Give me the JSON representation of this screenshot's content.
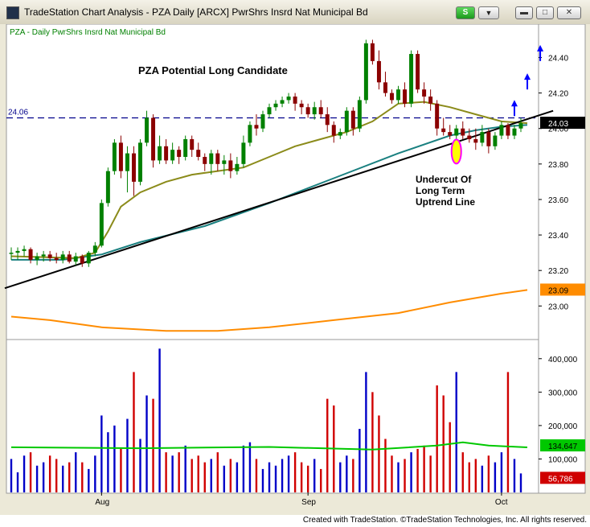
{
  "window": {
    "title": "TradeStation Chart Analysis - PZA Daily [ARCX] PwrShrs Insrd Nat Municipal Bd",
    "s_button": "S",
    "dropdown": "▼"
  },
  "colors": {
    "up": "#008000",
    "down": "#8b0000",
    "volume_up": "#0000c8",
    "volume_down": "#d00000",
    "ma_short": "#8b8b1a",
    "ma_mid": "#1a8080",
    "ma_long": "#ff8c00",
    "ma_volume": "#00c800",
    "trendline": "#000000",
    "resistance": "#00008b",
    "arrow": "#0000ff",
    "ellipse_fill": "#ffff00",
    "ellipse_stroke": "#ff00ff"
  },
  "footer": "Created with TradeStation. ©TradeStation Technologies, Inc. All rights reserved.",
  "chart_data": {
    "type": "candlestick",
    "legend": "PZA - Daily  PwrShrs Insrd Nat Municipal Bd",
    "annotation_title": "PZA  Potential Long Candidate",
    "annotation_note": [
      "Undercut Of",
      "Long Term",
      "Uptrend Line"
    ],
    "resistance_level": 24.06,
    "resistance_label": "24.06",
    "last_price_label": "24.03",
    "ma_long_label": "23.09",
    "volume_ma_label": "134,647",
    "last_volume_label": "56,786",
    "price_ylim": [
      22.82,
      24.52
    ],
    "price_ticks": [
      "24.40",
      "24.20",
      "24.00",
      "23.80",
      "23.60",
      "23.40",
      "23.20",
      "23.00"
    ],
    "volume_ylim": [
      0,
      450000
    ],
    "volume_ticks": [
      "400,000",
      "300,000",
      "200,000",
      "100,000"
    ],
    "x_labels": [
      {
        "label": "Aug",
        "index": 14
      },
      {
        "label": "Sep",
        "index": 46
      },
      {
        "label": "Oct",
        "index": 76
      }
    ],
    "candles": [
      {
        "o": 23.3,
        "h": 23.33,
        "l": 23.26,
        "c": 23.3,
        "v": 100000
      },
      {
        "o": 23.3,
        "h": 23.33,
        "l": 23.26,
        "c": 23.31,
        "v": 60000
      },
      {
        "o": 23.31,
        "h": 23.34,
        "l": 23.28,
        "c": 23.32,
        "v": 110000
      },
      {
        "o": 23.32,
        "h": 23.33,
        "l": 23.24,
        "c": 23.26,
        "v": 120000
      },
      {
        "o": 23.26,
        "h": 23.3,
        "l": 23.23,
        "c": 23.28,
        "v": 80000
      },
      {
        "o": 23.28,
        "h": 23.31,
        "l": 23.25,
        "c": 23.29,
        "v": 90000
      },
      {
        "o": 23.29,
        "h": 23.31,
        "l": 23.25,
        "c": 23.27,
        "v": 110000
      },
      {
        "o": 23.27,
        "h": 23.3,
        "l": 23.24,
        "c": 23.26,
        "v": 100000
      },
      {
        "o": 23.26,
        "h": 23.31,
        "l": 23.24,
        "c": 23.29,
        "v": 80000
      },
      {
        "o": 23.29,
        "h": 23.31,
        "l": 23.24,
        "c": 23.25,
        "v": 90000
      },
      {
        "o": 23.25,
        "h": 23.3,
        "l": 23.23,
        "c": 23.28,
        "v": 120000
      },
      {
        "o": 23.28,
        "h": 23.29,
        "l": 23.22,
        "c": 23.24,
        "v": 90000
      },
      {
        "o": 23.24,
        "h": 23.31,
        "l": 23.22,
        "c": 23.3,
        "v": 70000
      },
      {
        "o": 23.3,
        "h": 23.36,
        "l": 23.28,
        "c": 23.34,
        "v": 110000
      },
      {
        "o": 23.34,
        "h": 23.6,
        "l": 23.33,
        "c": 23.58,
        "v": 230000
      },
      {
        "o": 23.58,
        "h": 23.78,
        "l": 23.56,
        "c": 23.76,
        "v": 180000
      },
      {
        "o": 23.76,
        "h": 23.94,
        "l": 23.74,
        "c": 23.92,
        "v": 200000
      },
      {
        "o": 23.92,
        "h": 23.96,
        "l": 23.72,
        "c": 23.76,
        "v": 130000
      },
      {
        "o": 23.76,
        "h": 23.9,
        "l": 23.64,
        "c": 23.86,
        "v": 220000
      },
      {
        "o": 23.86,
        "h": 23.9,
        "l": 23.62,
        "c": 23.7,
        "v": 360000
      },
      {
        "o": 23.7,
        "h": 23.94,
        "l": 23.68,
        "c": 23.92,
        "v": 160000
      },
      {
        "o": 23.92,
        "h": 24.1,
        "l": 23.9,
        "c": 24.06,
        "v": 290000
      },
      {
        "o": 24.06,
        "h": 24.08,
        "l": 23.78,
        "c": 23.82,
        "v": 280000
      },
      {
        "o": 23.82,
        "h": 23.96,
        "l": 23.8,
        "c": 23.9,
        "v": 430000
      },
      {
        "o": 23.9,
        "h": 23.94,
        "l": 23.8,
        "c": 23.82,
        "v": 120000
      },
      {
        "o": 23.82,
        "h": 23.92,
        "l": 23.8,
        "c": 23.88,
        "v": 110000
      },
      {
        "o": 23.88,
        "h": 23.9,
        "l": 23.8,
        "c": 23.84,
        "v": 120000
      },
      {
        "o": 23.84,
        "h": 23.96,
        "l": 23.82,
        "c": 23.94,
        "v": 140000
      },
      {
        "o": 23.94,
        "h": 23.96,
        "l": 23.84,
        "c": 23.88,
        "v": 100000
      },
      {
        "o": 23.88,
        "h": 23.92,
        "l": 23.82,
        "c": 23.84,
        "v": 110000
      },
      {
        "o": 23.84,
        "h": 23.86,
        "l": 23.76,
        "c": 23.8,
        "v": 90000
      },
      {
        "o": 23.8,
        "h": 23.88,
        "l": 23.74,
        "c": 23.86,
        "v": 100000
      },
      {
        "o": 23.86,
        "h": 23.88,
        "l": 23.76,
        "c": 23.8,
        "v": 120000
      },
      {
        "o": 23.8,
        "h": 23.85,
        "l": 23.74,
        "c": 23.82,
        "v": 80000
      },
      {
        "o": 23.82,
        "h": 23.86,
        "l": 23.72,
        "c": 23.76,
        "v": 100000
      },
      {
        "o": 23.76,
        "h": 23.84,
        "l": 23.74,
        "c": 23.8,
        "v": 90000
      },
      {
        "o": 23.8,
        "h": 23.96,
        "l": 23.78,
        "c": 23.92,
        "v": 140000
      },
      {
        "o": 23.92,
        "h": 24.04,
        "l": 23.9,
        "c": 24.02,
        "v": 150000
      },
      {
        "o": 24.02,
        "h": 24.08,
        "l": 23.96,
        "c": 24.0,
        "v": 100000
      },
      {
        "o": 24.0,
        "h": 24.1,
        "l": 23.98,
        "c": 24.08,
        "v": 70000
      },
      {
        "o": 24.08,
        "h": 24.14,
        "l": 24.06,
        "c": 24.12,
        "v": 90000
      },
      {
        "o": 24.12,
        "h": 24.16,
        "l": 24.1,
        "c": 24.14,
        "v": 80000
      },
      {
        "o": 24.14,
        "h": 24.18,
        "l": 24.12,
        "c": 24.16,
        "v": 100000
      },
      {
        "o": 24.16,
        "h": 24.2,
        "l": 24.14,
        "c": 24.18,
        "v": 110000
      },
      {
        "o": 24.18,
        "h": 24.2,
        "l": 24.1,
        "c": 24.14,
        "v": 120000
      },
      {
        "o": 24.14,
        "h": 24.16,
        "l": 24.08,
        "c": 24.12,
        "v": 90000
      },
      {
        "o": 24.12,
        "h": 24.14,
        "l": 24.06,
        "c": 24.08,
        "v": 80000
      },
      {
        "o": 24.08,
        "h": 24.15,
        "l": 24.05,
        "c": 24.12,
        "v": 100000
      },
      {
        "o": 24.12,
        "h": 24.16,
        "l": 24.06,
        "c": 24.08,
        "v": 70000
      },
      {
        "o": 24.08,
        "h": 24.12,
        "l": 23.98,
        "c": 24.02,
        "v": 280000
      },
      {
        "o": 24.02,
        "h": 24.04,
        "l": 23.92,
        "c": 23.96,
        "v": 260000
      },
      {
        "o": 23.96,
        "h": 24.0,
        "l": 23.94,
        "c": 23.98,
        "v": 90000
      },
      {
        "o": 23.98,
        "h": 24.12,
        "l": 23.96,
        "c": 24.1,
        "v": 110000
      },
      {
        "o": 24.1,
        "h": 24.12,
        "l": 23.96,
        "c": 24.0,
        "v": 100000
      },
      {
        "o": 24.0,
        "h": 24.18,
        "l": 23.98,
        "c": 24.16,
        "v": 190000
      },
      {
        "o": 24.16,
        "h": 24.5,
        "l": 24.14,
        "c": 24.48,
        "v": 360000
      },
      {
        "o": 24.48,
        "h": 24.5,
        "l": 24.36,
        "c": 24.38,
        "v": 300000
      },
      {
        "o": 24.38,
        "h": 24.44,
        "l": 24.22,
        "c": 24.26,
        "v": 230000
      },
      {
        "o": 24.26,
        "h": 24.32,
        "l": 24.18,
        "c": 24.2,
        "v": 160000
      },
      {
        "o": 24.2,
        "h": 24.22,
        "l": 24.14,
        "c": 24.16,
        "v": 110000
      },
      {
        "o": 24.16,
        "h": 24.24,
        "l": 24.14,
        "c": 24.22,
        "v": 90000
      },
      {
        "o": 24.22,
        "h": 24.26,
        "l": 24.12,
        "c": 24.14,
        "v": 100000
      },
      {
        "o": 24.14,
        "h": 24.44,
        "l": 24.12,
        "c": 24.42,
        "v": 120000
      },
      {
        "o": 24.42,
        "h": 24.44,
        "l": 24.2,
        "c": 24.22,
        "v": 130000
      },
      {
        "o": 24.22,
        "h": 24.26,
        "l": 24.14,
        "c": 24.18,
        "v": 140000
      },
      {
        "o": 24.18,
        "h": 24.22,
        "l": 24.1,
        "c": 24.14,
        "v": 110000
      },
      {
        "o": 24.14,
        "h": 24.16,
        "l": 23.96,
        "c": 24.0,
        "v": 320000
      },
      {
        "o": 24.0,
        "h": 24.06,
        "l": 23.96,
        "c": 23.98,
        "v": 290000
      },
      {
        "o": 23.98,
        "h": 24.02,
        "l": 23.94,
        "c": 23.96,
        "v": 210000
      },
      {
        "o": 23.96,
        "h": 24.02,
        "l": 23.82,
        "c": 24.0,
        "v": 360000
      },
      {
        "o": 24.0,
        "h": 24.04,
        "l": 23.94,
        "c": 23.96,
        "v": 120000
      },
      {
        "o": 23.96,
        "h": 24.0,
        "l": 23.92,
        "c": 23.94,
        "v": 90000
      },
      {
        "o": 23.94,
        "h": 24.0,
        "l": 23.88,
        "c": 23.92,
        "v": 100000
      },
      {
        "o": 23.92,
        "h": 24.02,
        "l": 23.9,
        "c": 23.98,
        "v": 80000
      },
      {
        "o": 23.98,
        "h": 24.0,
        "l": 23.86,
        "c": 23.9,
        "v": 110000
      },
      {
        "o": 23.9,
        "h": 23.98,
        "l": 23.88,
        "c": 23.96,
        "v": 90000
      },
      {
        "o": 23.96,
        "h": 24.04,
        "l": 23.94,
        "c": 24.02,
        "v": 120000
      },
      {
        "o": 24.02,
        "h": 24.03,
        "l": 23.94,
        "c": 23.96,
        "v": 360000
      },
      {
        "o": 23.96,
        "h": 24.02,
        "l": 23.94,
        "c": 24.0,
        "v": 100000
      },
      {
        "o": 24.0,
        "h": 24.06,
        "l": 23.98,
        "c": 24.03,
        "v": 56786
      }
    ],
    "ma_short_points": [
      [
        0,
        23.28
      ],
      [
        10,
        23.27
      ],
      [
        13,
        23.3
      ],
      [
        15,
        23.42
      ],
      [
        17,
        23.56
      ],
      [
        20,
        23.64
      ],
      [
        24,
        23.7
      ],
      [
        28,
        23.74
      ],
      [
        32,
        23.76
      ],
      [
        36,
        23.78
      ],
      [
        40,
        23.84
      ],
      [
        44,
        23.9
      ],
      [
        48,
        23.94
      ],
      [
        52,
        23.98
      ],
      [
        56,
        24.04
      ],
      [
        60,
        24.14
      ],
      [
        64,
        24.15
      ],
      [
        68,
        24.12
      ],
      [
        72,
        24.08
      ],
      [
        76,
        24.04
      ],
      [
        80,
        24.03
      ]
    ],
    "ma_mid_points": [
      [
        0,
        23.26
      ],
      [
        8,
        23.26
      ],
      [
        14,
        23.29
      ],
      [
        20,
        23.36
      ],
      [
        30,
        23.45
      ],
      [
        40,
        23.58
      ],
      [
        50,
        23.72
      ],
      [
        60,
        23.86
      ],
      [
        68,
        23.96
      ],
      [
        72,
        23.99
      ],
      [
        76,
        24.01
      ],
      [
        80,
        24.02
      ]
    ],
    "ma_long_points": [
      [
        0,
        22.94
      ],
      [
        6,
        22.92
      ],
      [
        14,
        22.88
      ],
      [
        24,
        22.86
      ],
      [
        32,
        22.86
      ],
      [
        40,
        22.88
      ],
      [
        50,
        22.92
      ],
      [
        60,
        22.96
      ],
      [
        68,
        23.02
      ],
      [
        76,
        23.07
      ],
      [
        80,
        23.09
      ]
    ],
    "volume_ma_points": [
      [
        0,
        135000
      ],
      [
        20,
        132000
      ],
      [
        40,
        136000
      ],
      [
        56,
        128000
      ],
      [
        66,
        140000
      ],
      [
        70,
        150000
      ],
      [
        74,
        140000
      ],
      [
        80,
        134647
      ]
    ],
    "trendline": [
      [
        -1,
        23.1
      ],
      [
        84,
        24.1
      ]
    ],
    "arrows": [
      {
        "index": 78,
        "price": 24.07
      },
      {
        "index": 80,
        "price": 24.22
      },
      {
        "index": 82,
        "price": 24.38
      }
    ],
    "ellipse": {
      "index": 69,
      "price": 23.87
    }
  }
}
